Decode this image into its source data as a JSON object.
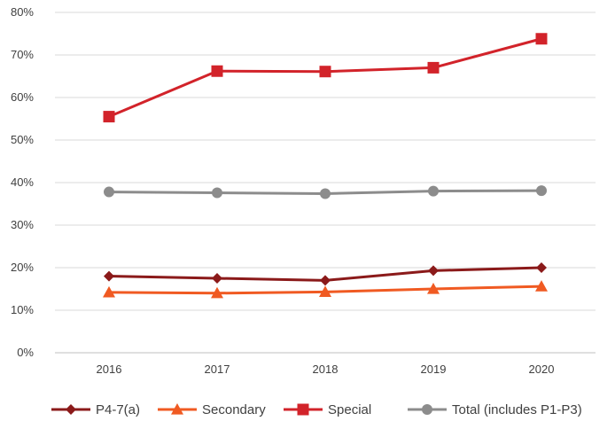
{
  "chart_data": {
    "type": "line",
    "categories": [
      "2016",
      "2017",
      "2018",
      "2019",
      "2020"
    ],
    "ylim": [
      0,
      80
    ],
    "y_ticks": [
      "0%",
      "10%",
      "20%",
      "30%",
      "40%",
      "50%",
      "60%",
      "70%",
      "80%"
    ],
    "y_tick_values": [
      0,
      10,
      20,
      30,
      40,
      50,
      60,
      70,
      80
    ],
    "grid": "horizontal",
    "legend_position": "bottom",
    "series": [
      {
        "name": "P4-7(a)",
        "color": "#8B1A1A",
        "marker": "diamond",
        "values": [
          18.0,
          17.5,
          17.0,
          19.3,
          20.0
        ]
      },
      {
        "name": "Secondary",
        "color": "#F05A22",
        "marker": "triangle",
        "values": [
          14.2,
          14.0,
          14.3,
          15.0,
          15.6
        ]
      },
      {
        "name": "Special",
        "color": "#D2232A",
        "marker": "square",
        "values": [
          55.5,
          66.2,
          66.1,
          67.0,
          73.8
        ]
      },
      {
        "name": "Total (includes P1-P3)",
        "color": "#8C8C8C",
        "marker": "circle",
        "values": [
          37.8,
          37.6,
          37.4,
          38.0,
          38.1
        ]
      }
    ]
  }
}
